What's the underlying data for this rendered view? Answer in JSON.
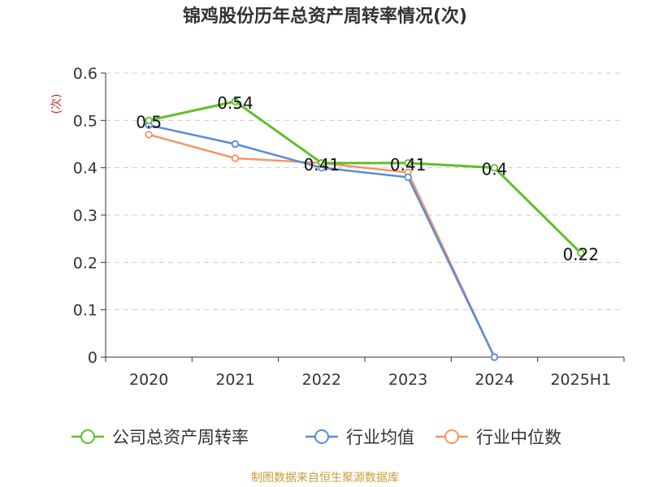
{
  "title": "锦鸡股份历年总资产周转率情况(次)",
  "source": "制图数据来自恒生聚源数据库",
  "colors": {
    "company": "#5fbf2a",
    "industry_avg": "#5b8bd8",
    "industry_median": "#f59563",
    "axis": "#333333",
    "grid": "#cccccc",
    "unit_label": "#d62728"
  },
  "chart_data": {
    "type": "line",
    "categories": [
      "2020",
      "2021",
      "2022",
      "2023",
      "2024",
      "2025H1"
    ],
    "ylabel": "(次)",
    "ylim": [
      0,
      0.6
    ],
    "yticks": [
      0,
      0.1,
      0.2,
      0.3,
      0.4,
      0.5,
      0.6
    ],
    "ytick_labels": [
      "0",
      "0.1",
      "0.2",
      "0.3",
      "0.4",
      "0.5",
      "0.6"
    ],
    "grid": true,
    "legend_position": "bottom",
    "series": [
      {
        "name": "公司总资产周转率",
        "key": "company",
        "values": [
          0.5,
          0.54,
          0.41,
          0.41,
          0.4,
          0.22
        ],
        "labels": [
          "0.5",
          "0.54",
          "0.41",
          "0.41",
          "0.4",
          "0.22"
        ]
      },
      {
        "name": "行业均值",
        "key": "industry_avg",
        "values": [
          0.49,
          0.45,
          0.4,
          0.38,
          0.0,
          null
        ]
      },
      {
        "name": "行业中位数",
        "key": "industry_median",
        "values": [
          0.47,
          0.42,
          0.41,
          0.39,
          0.0,
          null
        ]
      }
    ]
  }
}
